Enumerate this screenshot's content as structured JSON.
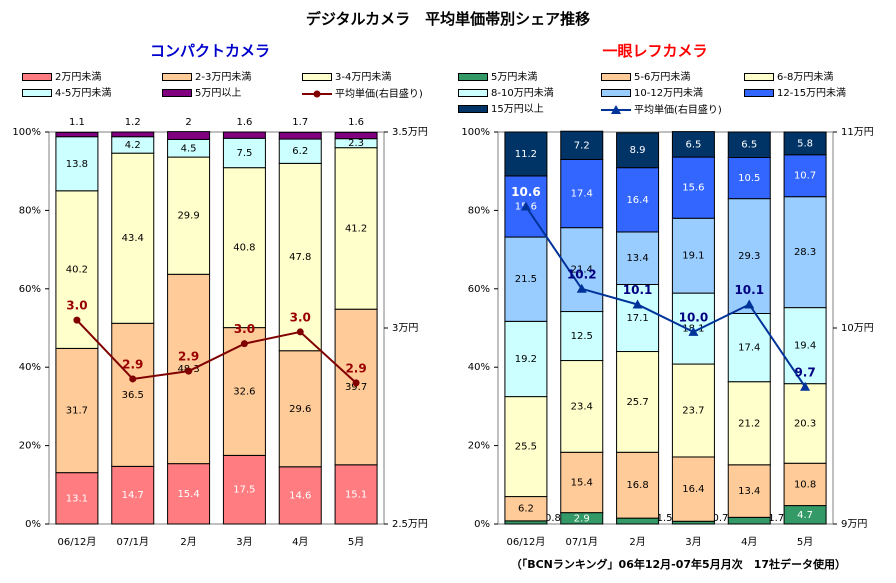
{
  "title": "デジタルカメラ　平均単価帯別シェア推移",
  "source": "（「BCNランキング」06年12月-07年5月月次　17社データ使用）",
  "chart_data": [
    {
      "type": "bar",
      "stacked": true,
      "title": "コンパクトカメラ",
      "categories": [
        "06/12月",
        "07/1月",
        "2月",
        "3月",
        "4月",
        "5月"
      ],
      "ylim": [
        0,
        100
      ],
      "y_ticks": [
        "0%",
        "20%",
        "40%",
        "60%",
        "80%",
        "100%"
      ],
      "y2_ticks": [
        "2.5万円",
        "3万円",
        "3.5万円"
      ],
      "y2lim": [
        2.5,
        3.5
      ],
      "series": [
        {
          "name": "2万円未満",
          "color": "#ff7c80",
          "values": [
            13.1,
            14.7,
            15.4,
            17.5,
            14.6,
            15.1
          ]
        },
        {
          "name": "2-3万円未満",
          "color": "#ffcc99",
          "values": [
            31.7,
            36.5,
            48.3,
            32.6,
            29.6,
            39.7
          ]
        },
        {
          "name": "3-4万円未満",
          "color": "#ffffcc",
          "values": [
            40.2,
            43.4,
            29.9,
            40.8,
            47.8,
            41.2
          ]
        },
        {
          "name": "4-5万円未満",
          "color": "#ccffff",
          "values": [
            13.8,
            4.2,
            4.5,
            7.5,
            6.2,
            2.3
          ]
        },
        {
          "name": "5万円以上",
          "color": "#800080",
          "values": [
            1.1,
            1.2,
            2.0,
            1.6,
            1.7,
            1.6
          ]
        }
      ],
      "avg_line": {
        "name": "平均単価(右目盛り)",
        "color": "#800000",
        "labels": [
          "3.0",
          "2.9",
          "2.9",
          "3.0",
          "3.0",
          "2.9"
        ],
        "values": [
          3.02,
          2.87,
          2.89,
          2.96,
          2.99,
          2.86
        ]
      }
    },
    {
      "type": "bar",
      "stacked": true,
      "title": "一眼レフカメラ",
      "categories": [
        "06/12月",
        "07/1月",
        "2月",
        "3月",
        "4月",
        "5月"
      ],
      "ylim": [
        0,
        100
      ],
      "y_ticks": [
        "0%",
        "20%",
        "40%",
        "60%",
        "80%",
        "100%"
      ],
      "y2_ticks": [
        "9万円",
        "10万円",
        "11万円"
      ],
      "y2lim": [
        9,
        11
      ],
      "series": [
        {
          "name": "5万円未満",
          "color": "#339966",
          "values": [
            0.8,
            2.9,
            1.5,
            0.7,
            1.7,
            4.7
          ]
        },
        {
          "name": "5-6万円未満",
          "color": "#ffcc99",
          "values": [
            6.2,
            15.4,
            16.8,
            16.4,
            13.4,
            10.8
          ]
        },
        {
          "name": "6-8万円未満",
          "color": "#ffffcc",
          "values": [
            25.5,
            23.4,
            25.7,
            23.7,
            21.2,
            20.3
          ]
        },
        {
          "name": "8-10万円未満",
          "color": "#ccffff",
          "values": [
            19.2,
            12.5,
            17.1,
            18.1,
            17.4,
            19.4
          ]
        },
        {
          "name": "10-12万円未満",
          "color": "#99ccff",
          "values": [
            21.5,
            21.4,
            13.4,
            19.1,
            29.3,
            28.3
          ]
        },
        {
          "name": "12-15万円未満",
          "color": "#3366ff",
          "values": [
            15.6,
            17.4,
            16.4,
            15.6,
            10.5,
            10.7
          ]
        },
        {
          "name": "15万円以上",
          "color": "#003366",
          "values": [
            11.2,
            7.2,
            8.9,
            6.5,
            6.5,
            5.8
          ]
        }
      ],
      "avg_line": {
        "name": "平均単価(右目盛り)",
        "color": "#003399",
        "labels": [
          "10.6",
          "10.2",
          "10.1",
          "10.0",
          "10.1",
          "9.7"
        ],
        "values": [
          10.62,
          10.2,
          10.12,
          9.98,
          10.12,
          9.7
        ]
      }
    }
  ]
}
